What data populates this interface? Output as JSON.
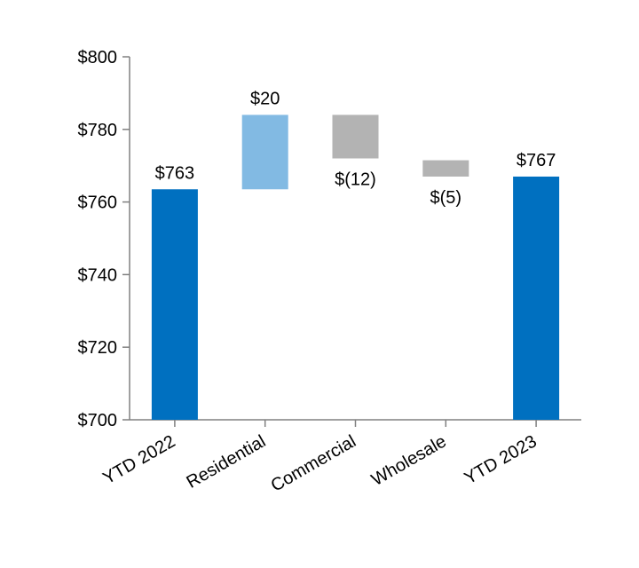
{
  "chart_data": {
    "type": "waterfall",
    "title": "",
    "xlabel": "",
    "ylabel": "",
    "ylim": [
      700,
      800
    ],
    "yticks": [
      700,
      720,
      740,
      760,
      780,
      800
    ],
    "ytick_labels": [
      "$700",
      "$720",
      "$740",
      "$760",
      "$780",
      "$800"
    ],
    "categories": [
      "YTD 2022",
      "Residential",
      "Commercial",
      "Wholesale",
      "YTD 2023"
    ],
    "bars": [
      {
        "category": "YTD 2022",
        "kind": "total",
        "start": 700,
        "end": 763.5,
        "value": 763,
        "label": "$763",
        "label_pos": "above",
        "color": "#0070c0"
      },
      {
        "category": "Residential",
        "kind": "increase",
        "start": 763.5,
        "end": 784,
        "value": 20,
        "label": "$20",
        "label_pos": "above",
        "color": "#82bae3"
      },
      {
        "category": "Commercial",
        "kind": "decrease",
        "start": 784,
        "end": 772,
        "value": -12,
        "label": "$(12)",
        "label_pos": "below",
        "color": "#b3b3b3"
      },
      {
        "category": "Wholesale",
        "kind": "decrease",
        "start": 771.5,
        "end": 767,
        "value": -5,
        "label": "$(5)",
        "label_pos": "below",
        "color": "#b3b3b3"
      },
      {
        "category": "YTD 2023",
        "kind": "total",
        "start": 700,
        "end": 767,
        "value": 767,
        "label": "$767",
        "label_pos": "above",
        "color": "#0070c0"
      }
    ],
    "axis_color": "#808080",
    "grid": false,
    "legend": "none"
  }
}
